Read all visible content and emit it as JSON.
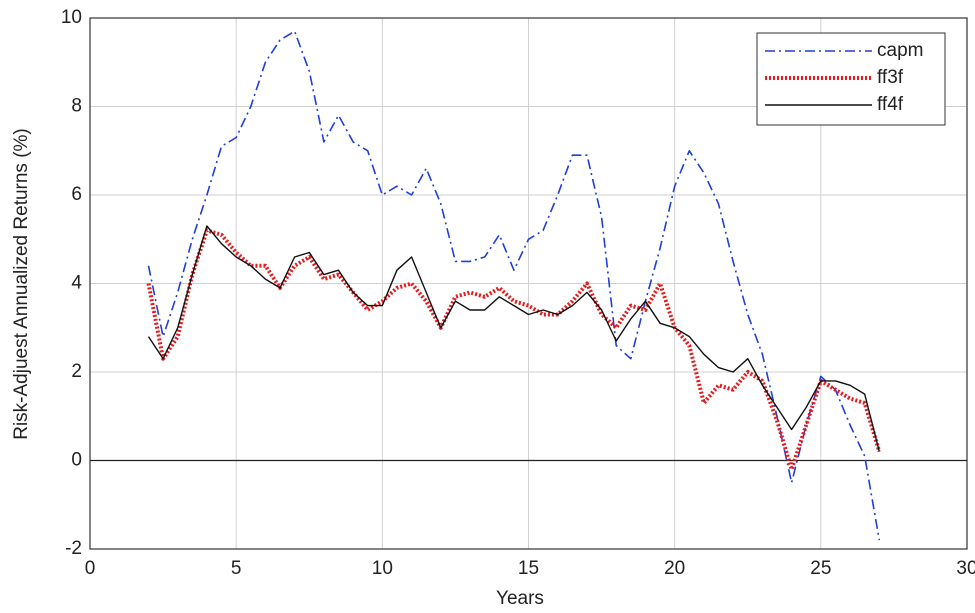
{
  "chart_data": {
    "type": "line",
    "xlabel": "Years",
    "ylabel": "Risk-Adjuest Annualized Returns (%)",
    "x": [
      2,
      2.5,
      3,
      3.5,
      4,
      4.5,
      5,
      5.5,
      6,
      6.5,
      7,
      7.5,
      8,
      8.5,
      9,
      9.5,
      10,
      10.5,
      11,
      11.5,
      12,
      12.5,
      13,
      13.5,
      14,
      14.5,
      15,
      15.5,
      16,
      16.5,
      17,
      17.5,
      18,
      18.5,
      19,
      19.5,
      20,
      20.5,
      21,
      21.5,
      22,
      22.5,
      23,
      23.5,
      24,
      24.5,
      25,
      25.5,
      26,
      26.5,
      27
    ],
    "series": [
      {
        "name": "capm",
        "color": "#1f3fd8",
        "linestyle": "dashdot",
        "values": [
          4.4,
          2.8,
          3.8,
          5.0,
          6.0,
          7.1,
          7.3,
          8.0,
          9.0,
          9.5,
          9.7,
          8.8,
          7.2,
          7.8,
          7.2,
          7.0,
          6.0,
          6.2,
          6.0,
          6.6,
          5.8,
          4.5,
          4.5,
          4.6,
          5.1,
          4.3,
          5.0,
          5.2,
          6.0,
          6.9,
          6.9,
          5.5,
          2.6,
          2.3,
          3.6,
          4.8,
          6.2,
          7.0,
          6.5,
          5.8,
          4.5,
          3.3,
          2.4,
          1.0,
          -0.5,
          0.8,
          1.9,
          1.6,
          0.8,
          0.1,
          -1.8
        ]
      },
      {
        "name": "ff3f",
        "color": "#e8191b",
        "linestyle": "dotted",
        "values": [
          4.0,
          2.3,
          2.8,
          4.2,
          5.2,
          5.1,
          4.7,
          4.4,
          4.4,
          3.9,
          4.4,
          4.6,
          4.1,
          4.2,
          3.8,
          3.4,
          3.6,
          3.9,
          4.0,
          3.6,
          3.0,
          3.7,
          3.8,
          3.7,
          3.9,
          3.6,
          3.5,
          3.3,
          3.3,
          3.6,
          4.0,
          3.3,
          3.0,
          3.5,
          3.4,
          4.0,
          3.0,
          2.6,
          1.3,
          1.7,
          1.6,
          2.0,
          1.8,
          0.9,
          -0.2,
          0.8,
          1.8,
          1.6,
          1.4,
          1.3,
          0.2
        ]
      },
      {
        "name": "ff4f",
        "color": "#111111",
        "linestyle": "solid",
        "values": [
          2.8,
          2.3,
          3.0,
          4.2,
          5.3,
          4.9,
          4.6,
          4.4,
          4.1,
          3.9,
          4.6,
          4.7,
          4.2,
          4.3,
          3.8,
          3.5,
          3.5,
          4.3,
          4.6,
          3.8,
          3.0,
          3.6,
          3.4,
          3.4,
          3.7,
          3.5,
          3.3,
          3.4,
          3.3,
          3.5,
          3.8,
          3.4,
          2.7,
          3.2,
          3.6,
          3.1,
          3.0,
          2.8,
          2.4,
          2.1,
          2.0,
          2.3,
          1.7,
          1.2,
          0.7,
          1.2,
          1.8,
          1.8,
          1.7,
          1.5,
          0.2
        ]
      }
    ],
    "xlim": [
      0,
      30
    ],
    "xticks": [
      0,
      5,
      10,
      15,
      20,
      25,
      30
    ],
    "ylim": [
      -2,
      10
    ],
    "yticks": [
      -2,
      0,
      2,
      4,
      6,
      8,
      10
    ],
    "grid": true,
    "legend": "upper right"
  }
}
